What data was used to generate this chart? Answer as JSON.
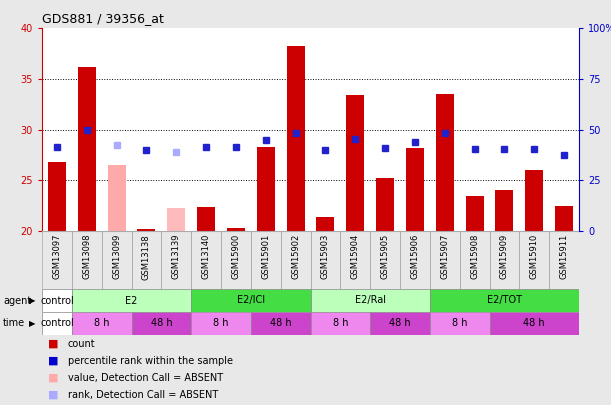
{
  "title": "GDS881 / 39356_at",
  "samples": [
    "GSM13097",
    "GSM13098",
    "GSM13099",
    "GSM13138",
    "GSM13139",
    "GSM13140",
    "GSM15900",
    "GSM15901",
    "GSM15902",
    "GSM15903",
    "GSM15904",
    "GSM15905",
    "GSM15906",
    "GSM15907",
    "GSM15908",
    "GSM15909",
    "GSM15910",
    "GSM15911"
  ],
  "bar_values": [
    26.8,
    36.2,
    26.5,
    20.2,
    22.3,
    22.4,
    20.3,
    28.3,
    38.2,
    21.4,
    33.4,
    25.2,
    28.2,
    33.5,
    23.4,
    24.0,
    26.0,
    22.5
  ],
  "bar_colors": [
    "#cc0000",
    "#cc0000",
    "#ffaaaa",
    "#cc0000",
    "#ffbbbb",
    "#cc0000",
    "#cc0000",
    "#cc0000",
    "#cc0000",
    "#cc0000",
    "#cc0000",
    "#cc0000",
    "#cc0000",
    "#cc0000",
    "#cc0000",
    "#cc0000",
    "#cc0000",
    "#cc0000"
  ],
  "dot_values": [
    28.3,
    30.0,
    28.5,
    28.0,
    27.8,
    28.3,
    28.3,
    29.0,
    29.7,
    28.0,
    29.1,
    28.2,
    28.8,
    29.7,
    28.1,
    28.1,
    28.1,
    27.5
  ],
  "dot_absent": [
    false,
    false,
    true,
    false,
    true,
    false,
    false,
    false,
    false,
    false,
    false,
    false,
    false,
    false,
    false,
    false,
    false,
    false
  ],
  "ylim_left": [
    20,
    40
  ],
  "ylim_right": [
    0,
    100
  ],
  "yticks_left": [
    20,
    25,
    30,
    35,
    40
  ],
  "yticks_right": [
    0,
    25,
    50,
    75,
    100
  ],
  "agent_groups": [
    {
      "label": "control",
      "start": 0,
      "end": 1,
      "color": "#ffffff"
    },
    {
      "label": "E2",
      "start": 1,
      "end": 5,
      "color": "#bbffbb"
    },
    {
      "label": "E2/ICI",
      "start": 5,
      "end": 9,
      "color": "#44dd44"
    },
    {
      "label": "E2/Ral",
      "start": 9,
      "end": 13,
      "color": "#bbffbb"
    },
    {
      "label": "E2/TOT",
      "start": 13,
      "end": 18,
      "color": "#44dd44"
    }
  ],
  "time_groups": [
    {
      "label": "control",
      "start": 0,
      "end": 1,
      "color": "#ffffff"
    },
    {
      "label": "8 h",
      "start": 1,
      "end": 3,
      "color": "#ee88ee"
    },
    {
      "label": "48 h",
      "start": 3,
      "end": 5,
      "color": "#cc44cc"
    },
    {
      "label": "8 h",
      "start": 5,
      "end": 7,
      "color": "#ee88ee"
    },
    {
      "label": "48 h",
      "start": 7,
      "end": 9,
      "color": "#cc44cc"
    },
    {
      "label": "8 h",
      "start": 9,
      "end": 11,
      "color": "#ee88ee"
    },
    {
      "label": "48 h",
      "start": 11,
      "end": 13,
      "color": "#cc44cc"
    },
    {
      "label": "8 h",
      "start": 13,
      "end": 15,
      "color": "#ee88ee"
    },
    {
      "label": "48 h",
      "start": 15,
      "end": 18,
      "color": "#cc44cc"
    }
  ],
  "bg_color": "#e8e8e8",
  "plot_bg": "#ffffff",
  "left_axis_color": "#cc0000",
  "right_axis_color": "#0000cc",
  "legend_items": [
    {
      "color": "#cc0000",
      "label": "count"
    },
    {
      "color": "#0000cc",
      "label": "percentile rank within the sample"
    },
    {
      "color": "#ffaaaa",
      "label": "value, Detection Call = ABSENT"
    },
    {
      "color": "#aaaaff",
      "label": "rank, Detection Call = ABSENT"
    }
  ]
}
